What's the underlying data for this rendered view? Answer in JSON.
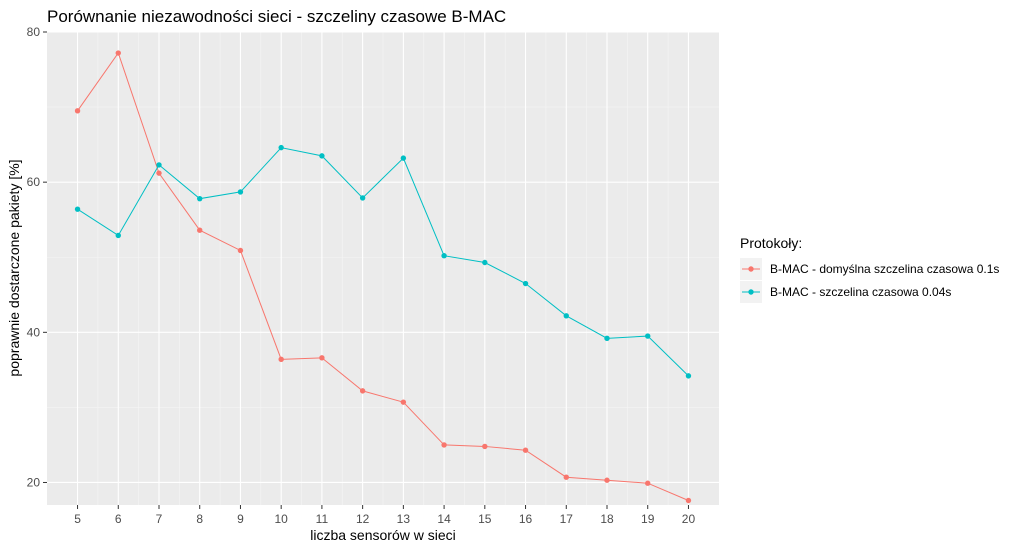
{
  "chart_data": {
    "type": "line",
    "title": "Porównanie niezawodności sieci - szczeliny czasowe B-MAC",
    "xlabel": "liczba sensorów w sieci",
    "ylabel": "poprawnie dostarczone pakiety [%]",
    "x": [
      5,
      6,
      7,
      8,
      9,
      10,
      11,
      12,
      13,
      14,
      15,
      16,
      17,
      18,
      19,
      20
    ],
    "xlim": [
      4.25,
      20.75
    ],
    "ylim": [
      17.0,
      80.0
    ],
    "yticks": [
      20,
      40,
      60,
      80
    ],
    "grid": true,
    "legend_title": "Protokoły:",
    "legend_position": "right",
    "series": [
      {
        "name": "B-MAC - domyślna szczelina czasowa 0.1s",
        "color": "#F8766D",
        "values": [
          69.5,
          77.2,
          61.2,
          53.6,
          50.9,
          36.4,
          36.6,
          32.2,
          30.7,
          25.0,
          24.8,
          24.3,
          20.7,
          20.3,
          19.9,
          17.6
        ]
      },
      {
        "name": "B-MAC - szczelina czasowa 0.04s",
        "color": "#00BFC4",
        "values": [
          56.4,
          52.9,
          62.3,
          57.8,
          58.7,
          64.6,
          63.5,
          57.9,
          63.2,
          50.2,
          49.3,
          46.5,
          42.2,
          39.2,
          39.5,
          34.2
        ]
      }
    ]
  },
  "colors": {
    "panel_background": "#EBEBEB",
    "grid_major": "#FFFFFF",
    "grid_minor": "#F5F5F5"
  }
}
